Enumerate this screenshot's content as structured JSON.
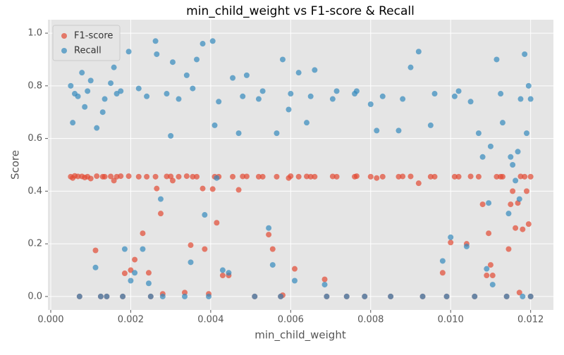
{
  "chart_data": {
    "type": "scatter",
    "title": "min_child_weight vs F1-score & Recall",
    "x_label": "min_child_weight",
    "y_label": "Score",
    "x": [
      0.0005,
      0.00055,
      0.0006,
      0.00072,
      0.00078,
      0.00085,
      0.00092,
      0.001,
      0.00112,
      0.00115,
      0.00125,
      0.0013,
      0.0014,
      0.0015,
      0.00158,
      0.00165,
      0.0018,
      0.00185,
      0.00195,
      0.002,
      0.0021,
      0.0022,
      0.0023,
      0.00245,
      0.0025,
      0.00262,
      0.00265,
      0.00275,
      0.0028,
      0.003,
      0.00305,
      0.0032,
      0.00335,
      0.0034,
      0.0035,
      0.00365,
      0.0038,
      0.00385,
      0.00395,
      0.00405,
      0.0041,
      0.00415,
      0.0043,
      0.00445,
      0.00455,
      0.0047,
      0.0049,
      0.0051,
      0.0053,
      0.00545,
      0.00555,
      0.00565,
      0.00575,
      0.0058,
      0.00595,
      0.0061,
      0.0062,
      0.0064,
      0.0066,
      0.00685,
      0.0069,
      0.00715,
      0.0074,
      0.00765,
      0.00785,
      0.008,
      0.00815,
      0.0085,
      0.0087,
      0.009,
      0.0092,
      0.0093,
      0.0095,
      0.0098,
      0.0099,
      0.01,
      0.0102,
      0.0104,
      0.0106,
      0.0107,
      0.0108,
      0.0109,
      0.01095,
      0.011,
      0.01105,
      0.01115,
      0.0113,
      0.0114,
      0.01145,
      0.0115,
      0.01155,
      0.01162,
      0.01168,
      0.01172,
      0.0118,
      0.01185,
      0.0119,
      0.01195,
      0.012,
      0.012,
      0.00068,
      0.00135,
      0.00175,
      0.0024,
      0.0029,
      0.00355,
      0.0042,
      0.0048,
      0.0052,
      0.006,
      0.0065,
      0.00705,
      0.0076,
      0.0083,
      0.0088,
      0.0096,
      0.0101,
      0.0105,
      0.01125,
      0.01175
    ],
    "series": [
      {
        "name": "F1-score",
        "color": "#E24A33",
        "values": [
          0.455,
          0.45,
          0.458,
          0,
          0.456,
          0.452,
          0.455,
          0.448,
          0.175,
          0.457,
          0,
          0.455,
          0,
          0.456,
          0.44,
          0.455,
          0,
          0.088,
          0.457,
          0.1,
          0.14,
          0.455,
          0.24,
          0.09,
          0,
          0.455,
          0.41,
          0.315,
          0.01,
          0.456,
          0.44,
          0.455,
          0.015,
          0.457,
          0.195,
          0.455,
          0.41,
          0.18,
          0.01,
          0.408,
          0.455,
          0.28,
          0.08,
          0.08,
          0.455,
          0.405,
          0.456,
          0,
          0.455,
          0.235,
          0.18,
          0.455,
          0,
          0.005,
          0.45,
          0.105,
          0.455,
          0.456,
          0.455,
          0.065,
          0,
          0.455,
          0,
          0.457,
          0,
          0.455,
          0.45,
          0,
          0.455,
          0.456,
          0.43,
          0,
          0.455,
          0.09,
          0,
          0.205,
          0.455,
          0.2,
          0,
          0.455,
          0.35,
          0.08,
          0.24,
          0.12,
          0.08,
          0.455,
          0.455,
          0,
          0.18,
          0.35,
          0.4,
          0.26,
          0.355,
          0.015,
          0.255,
          0.455,
          0.4,
          0.275,
          0,
          0.455,
          0.456,
          0.455,
          0.457,
          0.455,
          0.456,
          0.455,
          0.455,
          0.456,
          0.455,
          0.457,
          0.455,
          0.456,
          0.455,
          0.455,
          0.456,
          0.455,
          0.455,
          0.456,
          0.455,
          0.456
        ]
      },
      {
        "name": "Recall",
        "color": "#348ABD",
        "values": [
          0.8,
          0.66,
          0.77,
          0,
          0.85,
          0.72,
          0.78,
          0.82,
          0.11,
          0.64,
          0,
          0.7,
          0,
          0.81,
          0.87,
          0.77,
          0,
          0.18,
          0.93,
          0.06,
          0.09,
          0.79,
          0.18,
          0.05,
          0,
          0.97,
          0.92,
          0.37,
          0,
          0.61,
          0.89,
          0.75,
          0,
          0.84,
          0.13,
          0.9,
          0.96,
          0.31,
          0,
          0.97,
          0.65,
          0.45,
          0.1,
          0.09,
          0.83,
          0.62,
          0.84,
          0,
          0.78,
          0.26,
          0.12,
          0.62,
          0,
          0.9,
          0.71,
          0.06,
          0.85,
          0.66,
          0.86,
          0.045,
          0,
          0.78,
          0,
          0.78,
          0,
          0.73,
          0.63,
          0,
          0.63,
          0.87,
          0.93,
          0,
          0.65,
          0.135,
          0,
          0.225,
          0.78,
          0.19,
          0,
          0.62,
          0.53,
          0.105,
          0.355,
          0.57,
          0.045,
          0.9,
          0.66,
          0,
          0.315,
          0.53,
          0.5,
          0.44,
          0.55,
          0.37,
          0,
          0.92,
          0.62,
          0.8,
          0,
          0.75,
          0.76,
          0.75,
          0.78,
          0.76,
          0.77,
          0.79,
          0.74,
          0.76,
          0.75,
          0.77,
          0.76,
          0.75,
          0.77,
          0.76,
          0.75,
          0.77,
          0.76,
          0.74,
          0.77,
          0.75
        ]
      }
    ],
    "xlim": [
      -7e-05,
      0.01257
    ],
    "xticks": [
      {
        "value": 0,
        "label": "0.000"
      },
      {
        "value": 0.002,
        "label": "0.002"
      },
      {
        "value": 0.004,
        "label": "0.004"
      },
      {
        "value": 0.006,
        "label": "0.006"
      },
      {
        "value": 0.008,
        "label": "0.008"
      },
      {
        "value": 0.01,
        "label": "0.010"
      },
      {
        "value": 0.012,
        "label": "0.012"
      }
    ],
    "ylim": [
      -0.051,
      1.051
    ],
    "yticks": [
      {
        "value": 0,
        "label": "0.0"
      },
      0.2,
      0.4,
      0.6,
      0.8,
      {
        "value": 1,
        "label": "1.0"
      }
    ],
    "grid": true,
    "legend": "upper-left"
  }
}
